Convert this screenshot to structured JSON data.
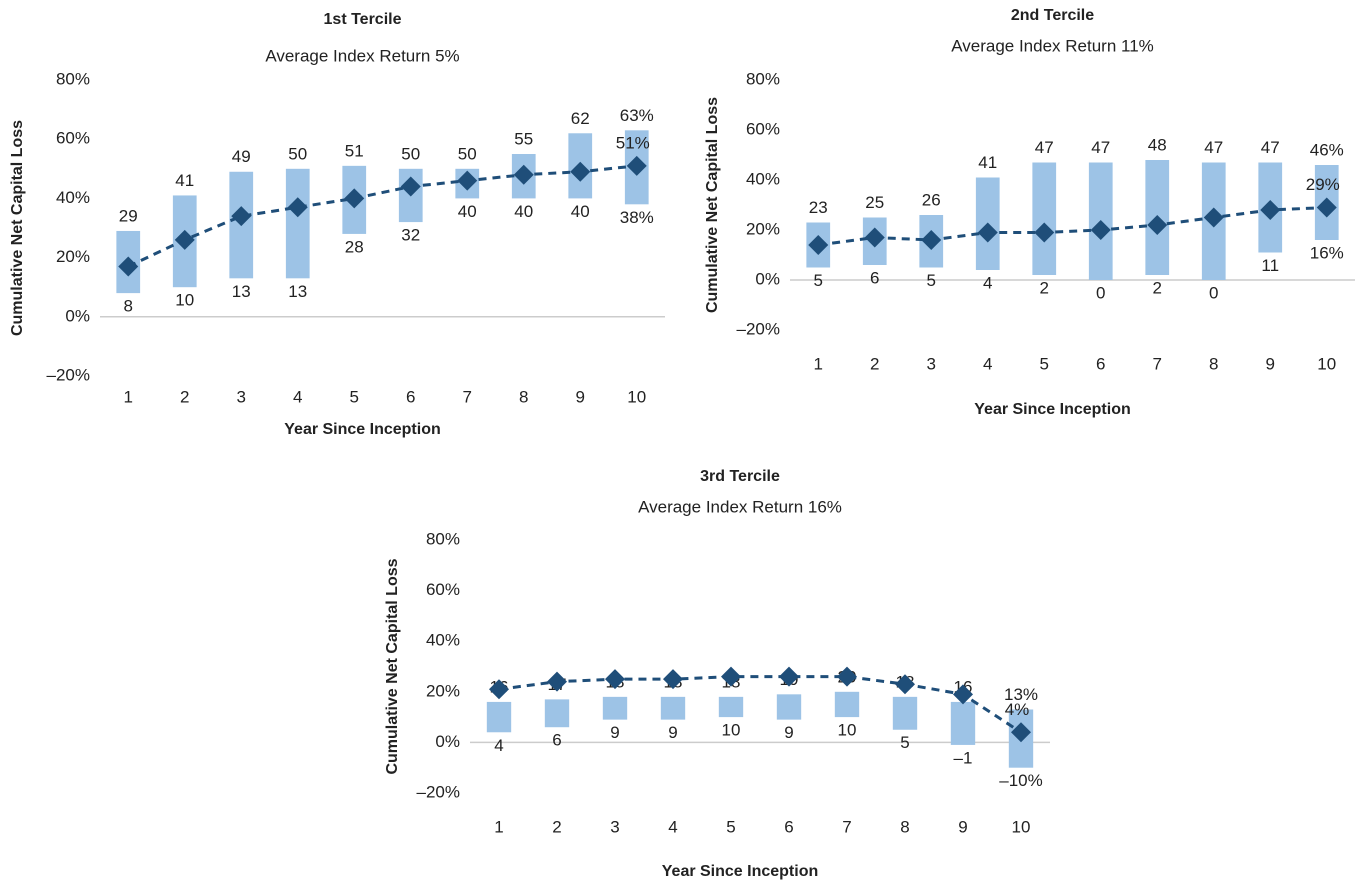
{
  "chart_data": [
    {
      "type": "range",
      "title": "1st Tercile",
      "subtitle": "Average Index Return 5%",
      "x_label": "Year Since Inception",
      "y_label": "Cumulative Net Capital Loss",
      "categories": [
        "1",
        "2",
        "3",
        "4",
        "5",
        "6",
        "7",
        "8",
        "9",
        "10"
      ],
      "high": {
        "values": [
          29,
          41,
          49,
          50,
          51,
          50,
          50,
          55,
          62,
          63
        ],
        "value_labels": [
          "29",
          "41",
          "49",
          "50",
          "51",
          "50",
          "50",
          "55",
          "62",
          "63%"
        ]
      },
      "low": {
        "values": [
          8,
          10,
          13,
          13,
          28,
          32,
          40,
          40,
          40,
          38
        ],
        "value_labels": [
          "8",
          "10",
          "13",
          "13",
          "28",
          "32",
          "40",
          "40",
          "40",
          "38%"
        ]
      },
      "mean": {
        "values": [
          17,
          26,
          34,
          37,
          40,
          44,
          46,
          48,
          49,
          51
        ],
        "value_labels": [
          null,
          null,
          null,
          null,
          null,
          null,
          null,
          null,
          null,
          "51%"
        ]
      },
      "bar_color": "#9dc3e6",
      "line_color": "#1f4e79",
      "ylim": [
        -20,
        80
      ],
      "yticks": [
        {
          "value": -20,
          "label": "–20%"
        },
        {
          "value": 0,
          "label": "0%"
        },
        {
          "value": 20,
          "label": "20%"
        },
        {
          "value": 40,
          "label": "40%"
        },
        {
          "value": 60,
          "label": "60%"
        },
        {
          "value": 80,
          "label": "80%"
        }
      ]
    },
    {
      "type": "range",
      "title": "2nd Tercile",
      "subtitle": "Average Index Return 11%",
      "x_label": "Year Since Inception",
      "y_label": "Cumulative Net Capital Loss",
      "categories": [
        "1",
        "2",
        "3",
        "4",
        "5",
        "6",
        "7",
        "8",
        "9",
        "10"
      ],
      "high": {
        "values": [
          23,
          25,
          26,
          41,
          47,
          47,
          48,
          47,
          47,
          46
        ],
        "value_labels": [
          "23",
          "25",
          "26",
          "41",
          "47",
          "47",
          "48",
          "47",
          "47",
          "46%"
        ]
      },
      "low": {
        "values": [
          5,
          6,
          5,
          4,
          2,
          0,
          2,
          0,
          11,
          16
        ],
        "value_labels": [
          "5",
          "6",
          "5",
          "4",
          "2",
          "0",
          "2",
          "0",
          "11",
          "16%"
        ]
      },
      "mean": {
        "values": [
          14,
          17,
          16,
          19,
          19,
          20,
          22,
          25,
          28,
          29
        ],
        "value_labels": [
          null,
          null,
          null,
          null,
          null,
          null,
          null,
          null,
          null,
          "29%"
        ]
      },
      "bar_color": "#9dc3e6",
      "line_color": "#1f4e79",
      "ylim": [
        -20,
        80
      ],
      "yticks": [
        {
          "value": -20,
          "label": "–20%"
        },
        {
          "value": 0,
          "label": "0%"
        },
        {
          "value": 20,
          "label": "20%"
        },
        {
          "value": 40,
          "label": "40%"
        },
        {
          "value": 60,
          "label": "60%"
        },
        {
          "value": 80,
          "label": "80%"
        }
      ]
    },
    {
      "type": "range",
      "title": "3rd Tercile",
      "subtitle": "Average Index Return 16%",
      "x_label": "Year Since Inception",
      "y_label": "Cumulative Net Capital Loss",
      "categories": [
        "1",
        "2",
        "3",
        "4",
        "5",
        "6",
        "7",
        "8",
        "9",
        "10"
      ],
      "high": {
        "values": [
          16,
          17,
          18,
          18,
          18,
          19,
          20,
          18,
          16,
          13
        ],
        "value_labels": [
          "16",
          "17",
          "18",
          "18",
          "18",
          "19",
          "20",
          "18",
          "16",
          "13%"
        ]
      },
      "low": {
        "values": [
          4,
          6,
          9,
          9,
          10,
          9,
          10,
          5,
          -1,
          -10
        ],
        "value_labels": [
          "4",
          "6",
          "9",
          "9",
          "10",
          "9",
          "10",
          "5",
          "–1",
          "–10%"
        ]
      },
      "mean": {
        "values": [
          21,
          24,
          25,
          25,
          26,
          26,
          26,
          23,
          19,
          4
        ],
        "value_labels": [
          null,
          null,
          null,
          null,
          null,
          null,
          null,
          null,
          null,
          "4%"
        ]
      },
      "bar_color": "#9dc3e6",
      "line_color": "#1f4e79",
      "ylim": [
        -20,
        80
      ],
      "yticks": [
        {
          "value": -20,
          "label": "–20%"
        },
        {
          "value": 0,
          "label": "0%"
        },
        {
          "value": 20,
          "label": "20%"
        },
        {
          "value": 40,
          "label": "40%"
        },
        {
          "value": 60,
          "label": "60%"
        },
        {
          "value": 80,
          "label": "80%"
        }
      ]
    }
  ]
}
